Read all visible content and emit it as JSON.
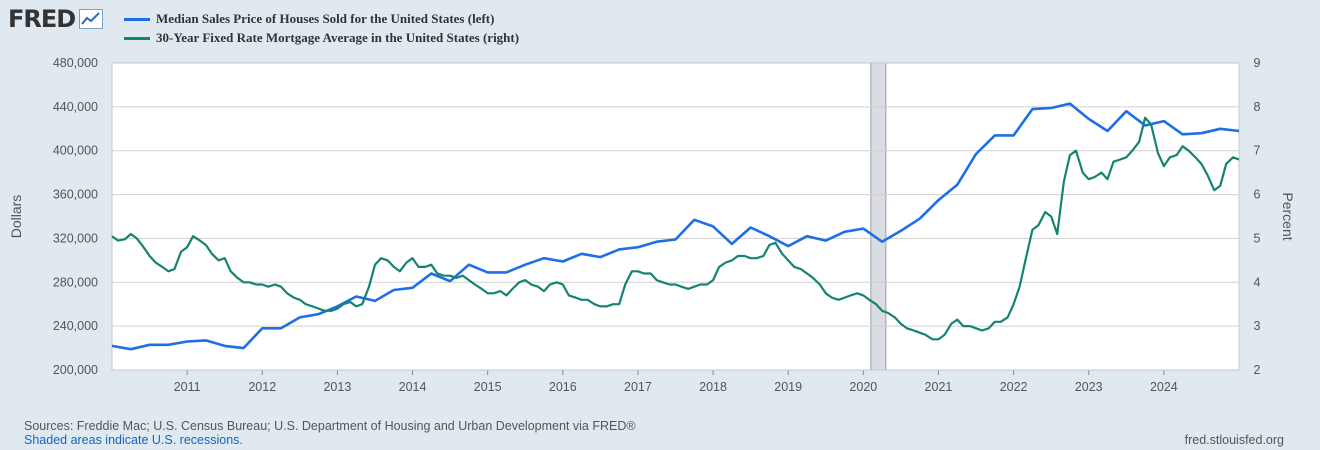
{
  "header": {
    "logo_text": "FRED",
    "logo_icon": "line-chart-icon"
  },
  "legend": [
    {
      "label": "Median Sales Price of Houses Sold for the United States (left)",
      "color": "#1e6ee6"
    },
    {
      "label": "30-Year Fixed Rate Mortgage Average in the United States (right)",
      "color": "#148471"
    }
  ],
  "footer": {
    "sources": "Sources: Freddie Mac; U.S. Census Bureau; U.S. Department of Housing and Urban Development via FRED®",
    "recessions_note": "Shaded areas indicate U.S. recessions.",
    "url": "fred.stlouisfed.org"
  },
  "chart_data": {
    "type": "line",
    "xlim": [
      2010.0,
      2025.0
    ],
    "x_ticks": [
      "2011",
      "2012",
      "2013",
      "2014",
      "2015",
      "2016",
      "2017",
      "2018",
      "2019",
      "2020",
      "2021",
      "2022",
      "2023",
      "2024"
    ],
    "left_axis": {
      "label": "Dollars",
      "ylim": [
        200000,
        480000
      ],
      "ticks": [
        "200,000",
        "240,000",
        "280,000",
        "320,000",
        "360,000",
        "400,000",
        "440,000",
        "480,000"
      ]
    },
    "right_axis": {
      "label": "Percent",
      "ylim": [
        2,
        9
      ],
      "ticks": [
        "2",
        "3",
        "4",
        "5",
        "6",
        "7",
        "8",
        "9"
      ]
    },
    "grid": true,
    "recession": {
      "start": 2020.1,
      "end": 2020.3
    },
    "series": [
      {
        "name": "Median Sales Price of Houses Sold for the United States (left)",
        "axis": "left",
        "color": "#1e6ee6",
        "x": [
          2010.0,
          2010.25,
          2010.5,
          2010.75,
          2011.0,
          2011.25,
          2011.5,
          2011.75,
          2012.0,
          2012.25,
          2012.5,
          2012.75,
          2013.0,
          2013.25,
          2013.5,
          2013.75,
          2014.0,
          2014.25,
          2014.5,
          2014.75,
          2015.0,
          2015.25,
          2015.5,
          2015.75,
          2016.0,
          2016.25,
          2016.5,
          2016.75,
          2017.0,
          2017.25,
          2017.5,
          2017.75,
          2018.0,
          2018.25,
          2018.5,
          2018.75,
          2019.0,
          2019.25,
          2019.5,
          2019.75,
          2020.0,
          2020.25,
          2020.5,
          2020.75,
          2021.0,
          2021.25,
          2021.5,
          2021.75,
          2022.0,
          2022.25,
          2022.5,
          2022.75,
          2023.0,
          2023.25,
          2023.5,
          2023.75,
          2024.0,
          2024.25,
          2024.5,
          2024.75,
          2025.0
        ],
        "values": [
          222000,
          219000,
          223000,
          223000,
          226000,
          227000,
          222000,
          220000,
          238000,
          238000,
          248000,
          251000,
          258000,
          267000,
          263000,
          273000,
          275000,
          288000,
          281000,
          296000,
          289000,
          289000,
          296000,
          302000,
          299000,
          306000,
          303000,
          310000,
          312000,
          317000,
          319000,
          337000,
          331000,
          315000,
          330000,
          322000,
          313000,
          322000,
          318000,
          326000,
          329000,
          317000,
          327000,
          338000,
          355000,
          369000,
          397000,
          414000,
          414000,
          438000,
          439000,
          443000,
          429000,
          418000,
          436000,
          423000,
          427000,
          415000,
          416000,
          420000,
          418000
        ]
      },
      {
        "name": "30-Year Fixed Rate Mortgage Average in the United States (right)",
        "axis": "right",
        "color": "#148471",
        "x": [
          2010.0,
          2010.08,
          2010.17,
          2010.25,
          2010.33,
          2010.42,
          2010.5,
          2010.58,
          2010.67,
          2010.75,
          2010.83,
          2010.92,
          2011.0,
          2011.08,
          2011.17,
          2011.25,
          2011.33,
          2011.42,
          2011.5,
          2011.58,
          2011.67,
          2011.75,
          2011.83,
          2011.92,
          2012.0,
          2012.08,
          2012.17,
          2012.25,
          2012.33,
          2012.42,
          2012.5,
          2012.58,
          2012.67,
          2012.75,
          2012.83,
          2012.92,
          2013.0,
          2013.08,
          2013.17,
          2013.25,
          2013.33,
          2013.42,
          2013.5,
          2013.58,
          2013.67,
          2013.75,
          2013.83,
          2013.92,
          2014.0,
          2014.08,
          2014.17,
          2014.25,
          2014.33,
          2014.42,
          2014.5,
          2014.58,
          2014.67,
          2014.75,
          2014.83,
          2014.92,
          2015.0,
          2015.08,
          2015.17,
          2015.25,
          2015.33,
          2015.42,
          2015.5,
          2015.58,
          2015.67,
          2015.75,
          2015.83,
          2015.92,
          2016.0,
          2016.08,
          2016.17,
          2016.25,
          2016.33,
          2016.42,
          2016.5,
          2016.58,
          2016.67,
          2016.75,
          2016.83,
          2016.92,
          2017.0,
          2017.08,
          2017.17,
          2017.25,
          2017.33,
          2017.42,
          2017.5,
          2017.58,
          2017.67,
          2017.75,
          2017.83,
          2017.92,
          2018.0,
          2018.08,
          2018.17,
          2018.25,
          2018.33,
          2018.42,
          2018.5,
          2018.58,
          2018.67,
          2018.75,
          2018.83,
          2018.92,
          2019.0,
          2019.08,
          2019.17,
          2019.25,
          2019.33,
          2019.42,
          2019.5,
          2019.58,
          2019.67,
          2019.75,
          2019.83,
          2019.92,
          2020.0,
          2020.08,
          2020.17,
          2020.25,
          2020.33,
          2020.42,
          2020.5,
          2020.58,
          2020.67,
          2020.75,
          2020.83,
          2020.92,
          2021.0,
          2021.08,
          2021.17,
          2021.25,
          2021.33,
          2021.42,
          2021.5,
          2021.58,
          2021.67,
          2021.75,
          2021.83,
          2021.92,
          2022.0,
          2022.08,
          2022.17,
          2022.25,
          2022.33,
          2022.42,
          2022.5,
          2022.58,
          2022.67,
          2022.75,
          2022.83,
          2022.92,
          2023.0,
          2023.08,
          2023.17,
          2023.25,
          2023.33,
          2023.42,
          2023.5,
          2023.58,
          2023.67,
          2023.75,
          2023.83,
          2023.92,
          2024.0,
          2024.08,
          2024.17,
          2024.25,
          2024.33,
          2024.42,
          2024.5,
          2024.58,
          2024.67,
          2024.75,
          2024.83,
          2024.92,
          2025.0
        ],
        "values": [
          5.05,
          4.95,
          4.98,
          5.1,
          5.0,
          4.8,
          4.6,
          4.45,
          4.35,
          4.25,
          4.3,
          4.7,
          4.8,
          5.05,
          4.95,
          4.85,
          4.65,
          4.5,
          4.55,
          4.25,
          4.1,
          4.0,
          4.0,
          3.95,
          3.95,
          3.9,
          3.95,
          3.9,
          3.75,
          3.65,
          3.6,
          3.5,
          3.45,
          3.4,
          3.35,
          3.35,
          3.4,
          3.5,
          3.55,
          3.45,
          3.5,
          3.9,
          4.4,
          4.55,
          4.5,
          4.35,
          4.25,
          4.45,
          4.55,
          4.35,
          4.35,
          4.4,
          4.2,
          4.15,
          4.15,
          4.1,
          4.15,
          4.05,
          3.95,
          3.85,
          3.75,
          3.75,
          3.8,
          3.7,
          3.85,
          4.0,
          4.05,
          3.95,
          3.9,
          3.8,
          3.95,
          4.0,
          3.95,
          3.7,
          3.65,
          3.6,
          3.6,
          3.5,
          3.45,
          3.45,
          3.5,
          3.5,
          3.95,
          4.25,
          4.25,
          4.2,
          4.2,
          4.05,
          4.0,
          3.95,
          3.95,
          3.9,
          3.85,
          3.9,
          3.95,
          3.95,
          4.05,
          4.35,
          4.45,
          4.5,
          4.6,
          4.6,
          4.55,
          4.55,
          4.6,
          4.85,
          4.9,
          4.65,
          4.5,
          4.35,
          4.3,
          4.2,
          4.1,
          3.95,
          3.75,
          3.65,
          3.6,
          3.65,
          3.7,
          3.75,
          3.7,
          3.6,
          3.5,
          3.35,
          3.3,
          3.2,
          3.05,
          2.95,
          2.9,
          2.85,
          2.8,
          2.7,
          2.7,
          2.8,
          3.05,
          3.15,
          3.0,
          3.0,
          2.95,
          2.9,
          2.95,
          3.1,
          3.1,
          3.2,
          3.5,
          3.9,
          4.6,
          5.2,
          5.3,
          5.6,
          5.5,
          5.1,
          6.3,
          6.9,
          7.0,
          6.5,
          6.35,
          6.4,
          6.5,
          6.35,
          6.75,
          6.8,
          6.85,
          7.0,
          7.2,
          7.75,
          7.6,
          6.95,
          6.65,
          6.85,
          6.9,
          7.1,
          7.0,
          6.85,
          6.7,
          6.45,
          6.1,
          6.2,
          6.7,
          6.85,
          6.8
        ]
      }
    ]
  }
}
